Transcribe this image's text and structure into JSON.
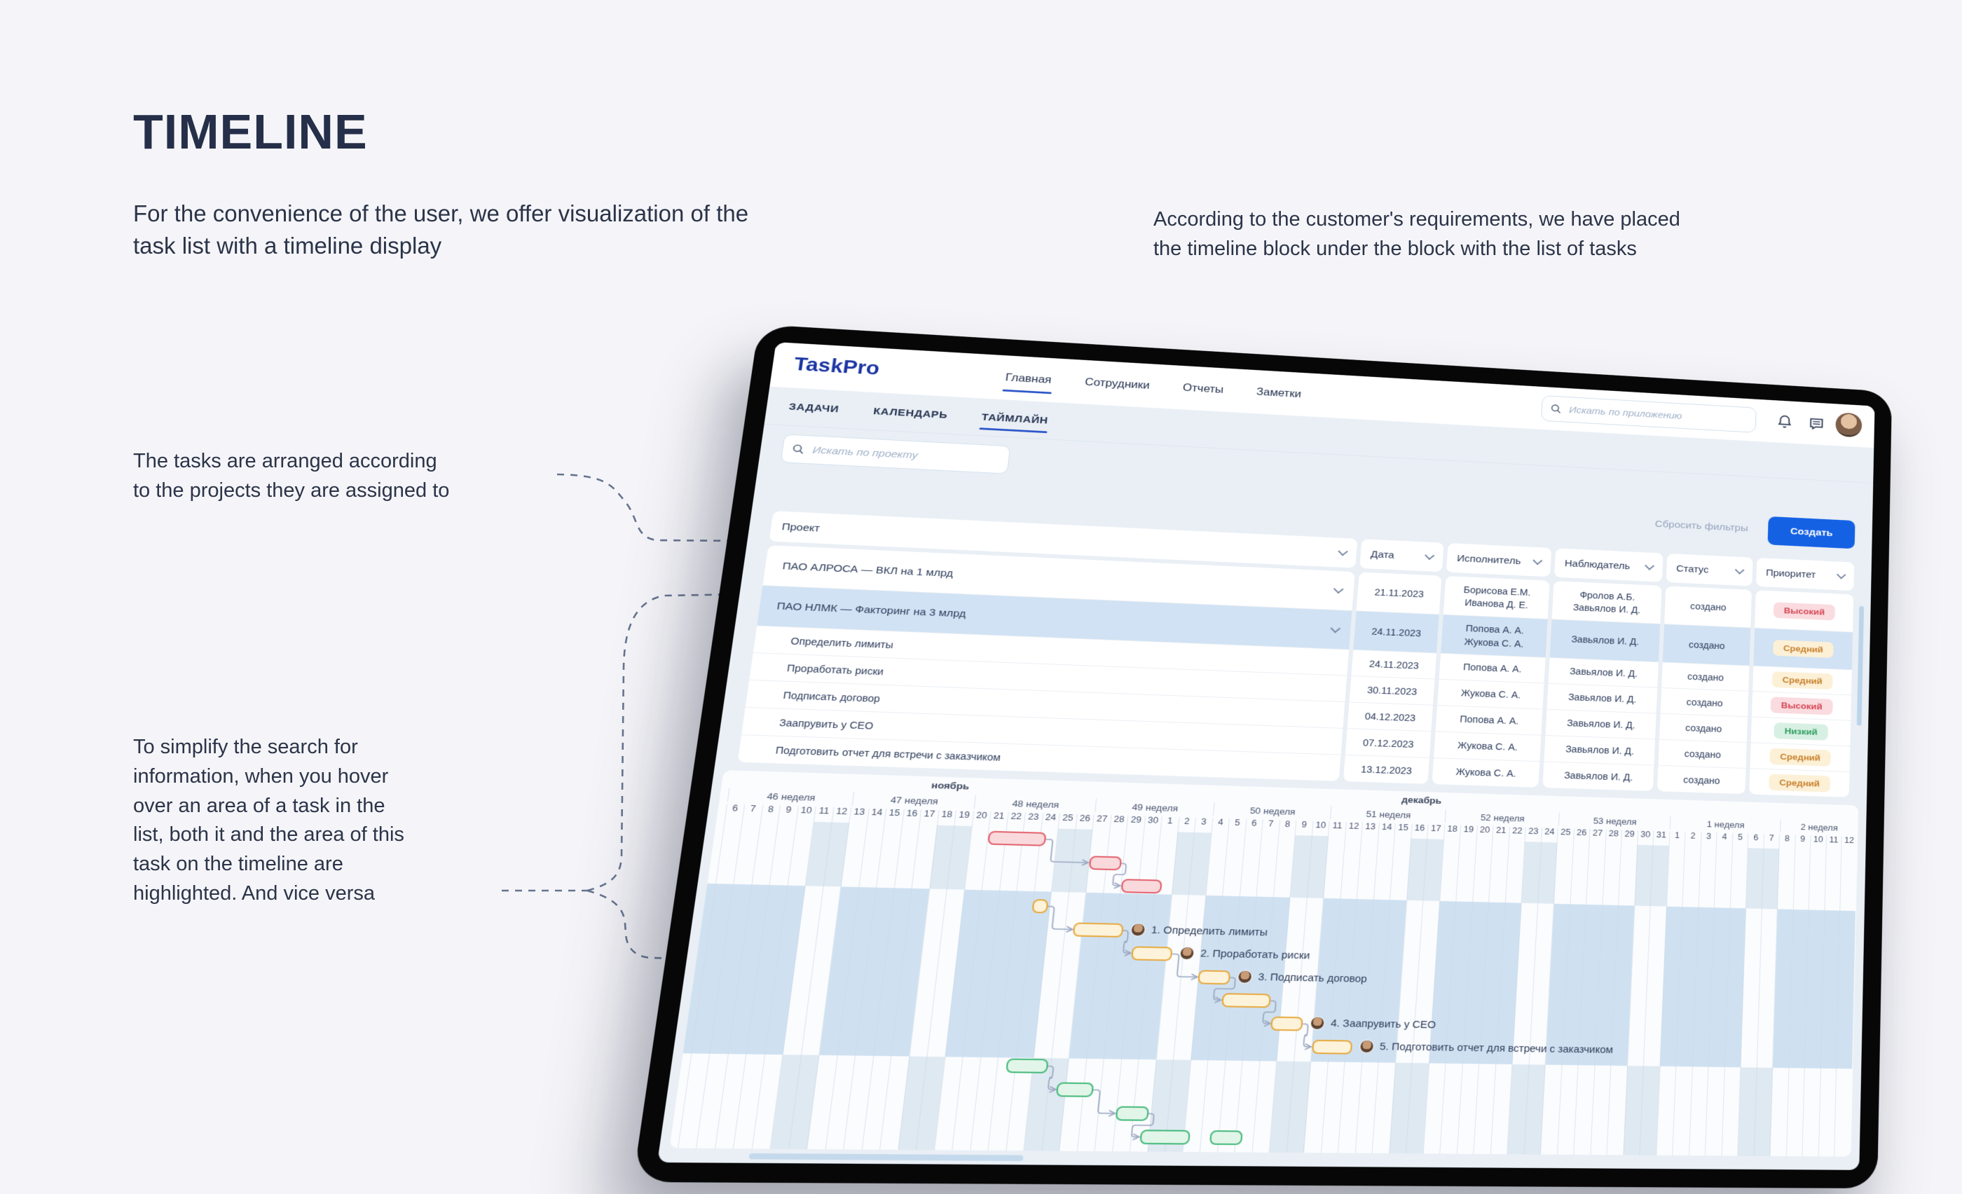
{
  "page": {
    "title": "TIMELINE",
    "intro_left": "For the convenience of the user, we offer visualization of the\ntask list with a timeline display",
    "intro_right": "According to the customer's requirements, we have placed\nthe timeline block under the block with the list of tasks",
    "note_projects": "The tasks are arranged according\nto the projects they are assigned to",
    "note_hover": "To simplify the search for\ninformation, when you hover\nover an area of a task in the\nlist, both it and the area of this\ntask on the timeline are\nhighlighted. And vice versa"
  },
  "app": {
    "logo": "TaskPro",
    "nav": [
      {
        "label": "Главная",
        "active": true
      },
      {
        "label": "Сотрудники",
        "active": false
      },
      {
        "label": "Отчеты",
        "active": false
      },
      {
        "label": "Заметки",
        "active": false
      }
    ],
    "header_search_placeholder": "Искать по приложению",
    "tabs": [
      {
        "label": "ЗАДАЧИ",
        "active": false
      },
      {
        "label": "КАЛЕНДАРЬ",
        "active": false
      },
      {
        "label": "ТАЙМЛАЙН",
        "active": true
      }
    ],
    "project_search_placeholder": "Искать по проекту",
    "actions": {
      "reset": "Сбросить фильтры",
      "create": "Создать"
    },
    "columns": [
      "Проект",
      "Дата",
      "Исполнитель",
      "Наблюдатель",
      "Статус",
      "Приоритет"
    ],
    "priority_styles": {
      "Высокий": {
        "bg": "#fadbdf",
        "fg": "#d54754"
      },
      "Средний": {
        "bg": "#fcf0d7",
        "fg": "#c8812b"
      },
      "Низкий": {
        "bg": "#d8f0e3",
        "fg": "#2f9f63"
      }
    },
    "rows": [
      {
        "type": "project",
        "name": "ПАО АЛРОСА — ВКЛ на 1 млрд",
        "date": "21.11.2023",
        "executors": [
          "Борисова Е.М.",
          "Иванова Д. Е."
        ],
        "observers": [
          "Фролов А.Б.",
          "Завьялов И. Д."
        ],
        "status": "создано",
        "priority": "Высокий",
        "highlighted": false
      },
      {
        "type": "project",
        "name": "ПАО НЛМК — Факторинг на 3 млрд",
        "date": "24.11.2023",
        "executors": [
          "Попова А. А.",
          "Жукова С. А."
        ],
        "observers": [
          "Завьялов И. Д."
        ],
        "status": "создано",
        "priority": "Средний",
        "highlighted": true
      },
      {
        "type": "task",
        "name": "Определить лимиты",
        "date": "24.11.2023",
        "executors": [
          "Попова А. А."
        ],
        "observers": [
          "Завьялов И. Д."
        ],
        "status": "создано",
        "priority": "Средний",
        "highlighted": false
      },
      {
        "type": "task",
        "name": "Проработать риски",
        "date": "30.11.2023",
        "executors": [
          "Жукова С. А."
        ],
        "observers": [
          "Завьялов И. Д."
        ],
        "status": "создано",
        "priority": "Высокий",
        "highlighted": false
      },
      {
        "type": "task",
        "name": "Подписать договор",
        "date": "04.12.2023",
        "executors": [
          "Попова А. А."
        ],
        "observers": [
          "Завьялов И. Д."
        ],
        "status": "создано",
        "priority": "Низкий",
        "highlighted": false
      },
      {
        "type": "task",
        "name": "Заапрувить у CEO",
        "date": "07.12.2023",
        "executors": [
          "Жукова С. А."
        ],
        "observers": [
          "Завьялов И. Д."
        ],
        "status": "создано",
        "priority": "Средний",
        "highlighted": false
      },
      {
        "type": "task",
        "name": "Подготовить отчет для встречи с заказчиком",
        "date": "13.12.2023",
        "executors": [
          "Жукова С. А."
        ],
        "observers": [
          "Завьялов И. Д."
        ],
        "status": "создано",
        "priority": "Средний",
        "highlighted": false
      }
    ]
  },
  "timeline": {
    "months": [
      {
        "label": "ноябрь",
        "start": 0,
        "span": 25
      },
      {
        "label": "декабрь",
        "start": 25,
        "span": 31
      }
    ],
    "weeks": [
      {
        "label": "46 неделя",
        "start": 0,
        "span": 7
      },
      {
        "label": "47 неделя",
        "start": 7,
        "span": 7
      },
      {
        "label": "48 неделя",
        "start": 14,
        "span": 7
      },
      {
        "label": "49 неделя",
        "start": 21,
        "span": 7
      },
      {
        "label": "50 неделя",
        "start": 28,
        "span": 7
      },
      {
        "label": "51 неделя",
        "start": 35,
        "span": 7
      },
      {
        "label": "52 неделя",
        "start": 42,
        "span": 7
      },
      {
        "label": "53 неделя",
        "start": 49,
        "span": 7
      },
      {
        "label": "1 неделя",
        "start": 56,
        "span": 7
      },
      {
        "label": "2 неделя",
        "start": 63,
        "span": 5
      }
    ],
    "days": [
      6,
      7,
      8,
      9,
      10,
      11,
      12,
      13,
      14,
      15,
      16,
      17,
      18,
      19,
      20,
      21,
      22,
      23,
      24,
      25,
      26,
      27,
      28,
      29,
      30,
      1,
      2,
      3,
      4,
      5,
      6,
      7,
      8,
      9,
      10,
      11,
      12,
      13,
      14,
      15,
      16,
      17,
      18,
      19,
      20,
      21,
      22,
      23,
      24,
      25,
      26,
      27,
      28,
      29,
      30,
      31,
      1,
      2,
      3,
      4,
      5,
      6,
      7,
      8,
      9,
      10,
      11,
      12
    ],
    "weekend_day_offsets": [
      5,
      6
    ],
    "highlight_band": {
      "from_row": 3,
      "to_row": 9
    },
    "group_styles": {
      "red": {
        "bg": "#f9d9dc",
        "border": "#e2606c"
      },
      "yellow": {
        "bg": "#fdf3da",
        "border": "#e7a93f"
      },
      "green": {
        "bg": "#e2f5e9",
        "border": "#47bb7c"
      }
    },
    "bars": [
      {
        "row": 0,
        "group": "red",
        "start": 15,
        "len": 3.5
      },
      {
        "row": 1,
        "group": "red",
        "start": 21,
        "len": 2
      },
      {
        "row": 2,
        "group": "red",
        "start": 23,
        "len": 2.5
      },
      {
        "row": 3,
        "group": "yellow",
        "start": 18,
        "len": 1
      },
      {
        "row": 4,
        "group": "yellow",
        "start": 20.5,
        "len": 3,
        "label": "1. Определить лимиты"
      },
      {
        "row": 5,
        "group": "yellow",
        "start": 24,
        "len": 2.5,
        "label": "2. Проработать риски"
      },
      {
        "row": 6,
        "group": "yellow",
        "start": 28,
        "len": 2,
        "label": "3. Подписать договор"
      },
      {
        "row": 7,
        "group": "yellow",
        "start": 29.5,
        "len": 3
      },
      {
        "row": 8,
        "group": "yellow",
        "start": 32.5,
        "len": 2,
        "label": "4. Заапрувить у CEO"
      },
      {
        "row": 9,
        "group": "yellow",
        "start": 35,
        "len": 2.5,
        "label": "5. Подготовить отчет для встречи с заказчиком"
      },
      {
        "row": 10,
        "group": "green",
        "start": 17.5,
        "len": 2.5
      },
      {
        "row": 11,
        "group": "green",
        "start": 20.5,
        "len": 2.2
      },
      {
        "row": 12,
        "group": "green",
        "start": 24,
        "len": 2
      },
      {
        "row": 13,
        "group": "green",
        "start": 25.5,
        "len": 3
      },
      {
        "row": 13,
        "group": "green2",
        "start": 29.5,
        "len": 2
      }
    ]
  }
}
